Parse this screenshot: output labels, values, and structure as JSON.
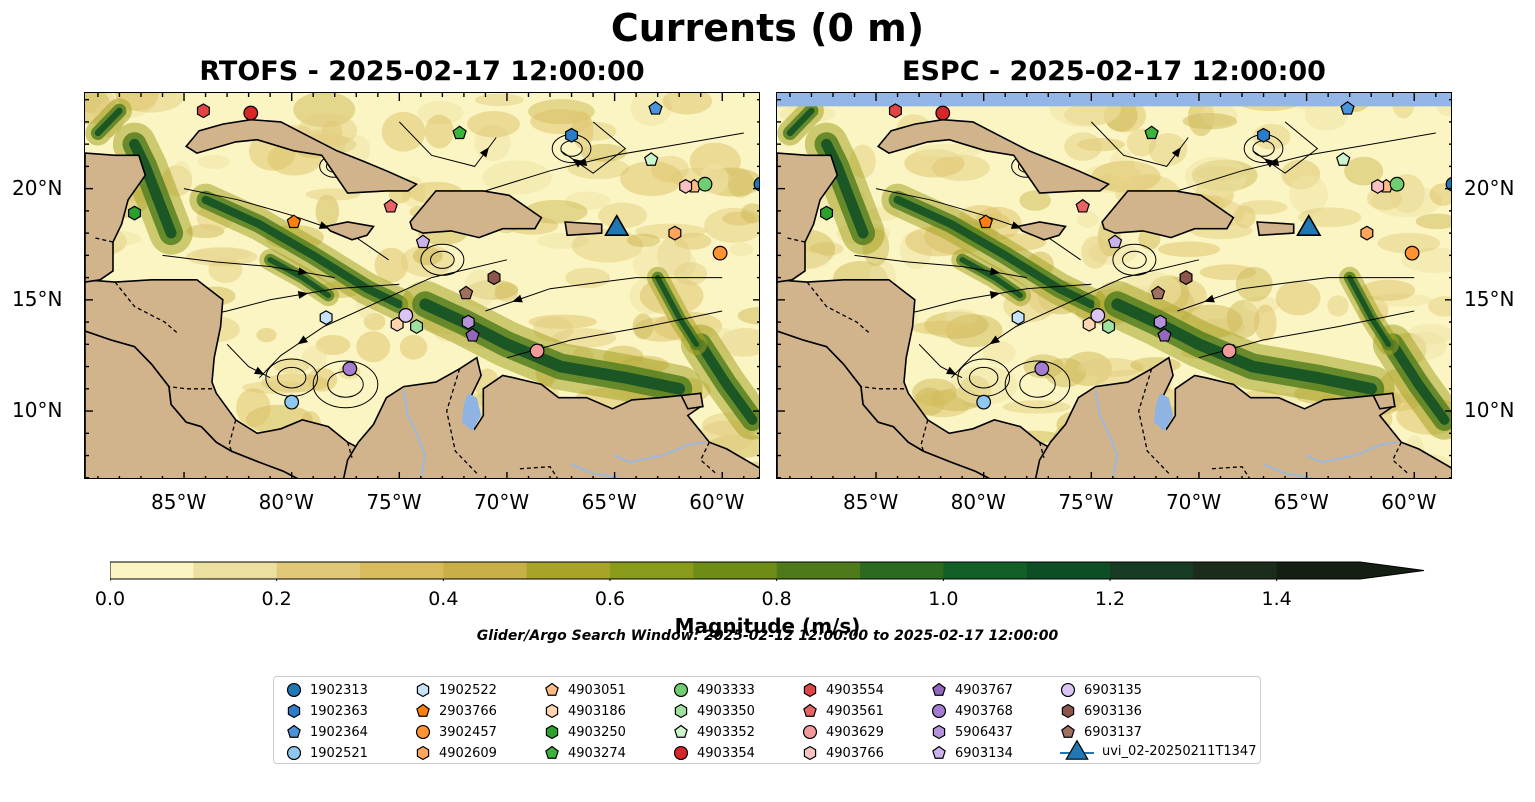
{
  "title": "Currents (0 m)",
  "panels": [
    {
      "name": "rtofs",
      "subtitle": "RTOFS - 2025-02-17 12:00:00"
    },
    {
      "name": "espc",
      "subtitle": "ESPC - 2025-02-17 12:00:00"
    }
  ],
  "axes": {
    "lon_ticks": [
      {
        "value": -85,
        "label": "85°W"
      },
      {
        "value": -80,
        "label": "80°W"
      },
      {
        "value": -75,
        "label": "75°W"
      },
      {
        "value": -70,
        "label": "70°W"
      },
      {
        "value": -65,
        "label": "65°W"
      },
      {
        "value": -60,
        "label": "60°W"
      }
    ],
    "lat_ticks": [
      {
        "value": 20,
        "label": "20°N"
      },
      {
        "value": 15,
        "label": "15°N"
      },
      {
        "value": 10,
        "label": "10°N"
      }
    ],
    "lon_range": [
      -89.6,
      -58.2
    ],
    "lat_range": [
      6.9,
      24.3
    ]
  },
  "colorbar": {
    "label": "Magnitude (m/s)",
    "ticks": [
      "0.0",
      "0.2",
      "0.4",
      "0.6",
      "0.8",
      "1.0",
      "1.2",
      "1.4"
    ],
    "range": [
      0,
      1.5
    ],
    "extend": "max",
    "colors": [
      "#fbf5c4",
      "#ece0a0",
      "#e0c878",
      "#d8bb5c",
      "#c8b048",
      "#a8a428",
      "#8a9a1a",
      "#6e8c18",
      "#4e7a1c",
      "#2c6a22",
      "#126028",
      "#0e4e24",
      "#173a22",
      "#1c2c1c",
      "#141e12"
    ]
  },
  "search_window": "Glider/Argo Search Window: 2025-02-12 12:00:00 to 2025-02-17 12:00:00",
  "colors": {
    "land": "#d2b48c",
    "lake": "#8fb4e3",
    "rivers": "#9db8dc",
    "nodata": "#94b6e6"
  },
  "chart_data": {
    "type": "map",
    "legend_position": "bottom-center",
    "series": [
      {
        "name": "1902313",
        "marker": "circle",
        "color": "#1f77b4",
        "lon": -58.2,
        "lat": 20.2
      },
      {
        "name": "1902363",
        "marker": "hexagon",
        "color": "#2b7dc8",
        "lon": -67.0,
        "lat": 22.4
      },
      {
        "name": "1902364",
        "marker": "pentagon",
        "color": "#4a93d8",
        "lon": -63.1,
        "lat": 23.6
      },
      {
        "name": "1902521",
        "marker": "circle",
        "color": "#8ec7f0",
        "lon": -80.0,
        "lat": 10.4
      },
      {
        "name": "1902522",
        "marker": "hexagon",
        "color": "#c6e3fb",
        "lon": -78.4,
        "lat": 14.2
      },
      {
        "name": "2903766",
        "marker": "pentagon",
        "color": "#ff7f0e",
        "lon": -79.9,
        "lat": 18.5
      },
      {
        "name": "3902457",
        "marker": "circle",
        "color": "#ff9233",
        "lon": -60.1,
        "lat": 17.1
      },
      {
        "name": "4902609",
        "marker": "hexagon",
        "color": "#ffa55c",
        "lon": -62.2,
        "lat": 18.0
      },
      {
        "name": "4903051",
        "marker": "pentagon",
        "color": "#ffbb85",
        "lon": -61.3,
        "lat": 20.1
      },
      {
        "name": "4903186",
        "marker": "hexagon",
        "color": "#ffd5b0",
        "lon": -75.1,
        "lat": 13.9
      },
      {
        "name": "4903250",
        "marker": "hexagon",
        "color": "#2ca02c",
        "lon": -87.3,
        "lat": 18.9
      },
      {
        "name": "4903274",
        "marker": "pentagon",
        "color": "#3cb43c",
        "lon": -72.2,
        "lat": 22.5
      },
      {
        "name": "4903333",
        "marker": "circle",
        "color": "#6fce6f",
        "lon": -60.8,
        "lat": 20.2
      },
      {
        "name": "4903350",
        "marker": "hexagon",
        "color": "#9ee09e",
        "lon": -74.2,
        "lat": 13.8
      },
      {
        "name": "4903352",
        "marker": "pentagon",
        "color": "#ccf5cc",
        "lon": -63.3,
        "lat": 21.3
      },
      {
        "name": "4903354",
        "marker": "circle",
        "color": "#d62728",
        "lon": -81.9,
        "lat": 23.4
      },
      {
        "name": "4903554",
        "marker": "hexagon",
        "color": "#e04545",
        "lon": -84.1,
        "lat": 23.5
      },
      {
        "name": "4903561",
        "marker": "pentagon",
        "color": "#e86464",
        "lon": -75.4,
        "lat": 19.2
      },
      {
        "name": "4903629",
        "marker": "circle",
        "color": "#f29a9a",
        "lon": -68.6,
        "lat": 12.7
      },
      {
        "name": "4903766",
        "marker": "hexagon",
        "color": "#f8c2c2",
        "lon": -61.7,
        "lat": 20.1
      },
      {
        "name": "4903767",
        "marker": "pentagon",
        "color": "#9467bd",
        "lon": -71.6,
        "lat": 13.4
      },
      {
        "name": "4903768",
        "marker": "circle",
        "color": "#a47cd0",
        "lon": -77.3,
        "lat": 11.9
      },
      {
        "name": "5906437",
        "marker": "hexagon",
        "color": "#b692dc",
        "lon": -71.8,
        "lat": 14.0
      },
      {
        "name": "6903134",
        "marker": "pentagon",
        "color": "#cbb2ee",
        "lon": -73.9,
        "lat": 17.6
      },
      {
        "name": "6903135",
        "marker": "circle",
        "color": "#dcc5f5",
        "lon": -74.7,
        "lat": 14.3
      },
      {
        "name": "6903136",
        "marker": "hexagon",
        "color": "#8c564b",
        "lon": -70.6,
        "lat": 16.0
      },
      {
        "name": "6903137",
        "marker": "pentagon",
        "color": "#a0705f",
        "lon": -71.9,
        "lat": 15.3
      },
      {
        "name": "uvi_02-20250211T1347",
        "marker": "triangle",
        "color": "#1f77b4",
        "lon": -64.9,
        "lat": 18.2
      }
    ]
  }
}
